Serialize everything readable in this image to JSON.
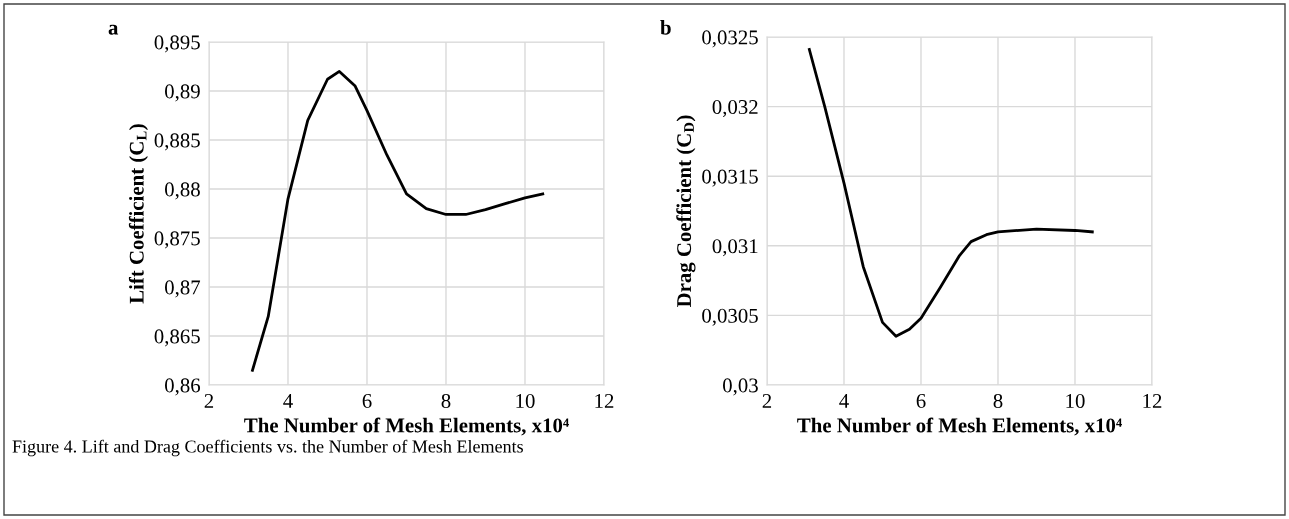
{
  "chart_data": [
    {
      "type": "line",
      "title": "a",
      "xlabel": "The Number of Mesh Elements, x10⁴",
      "ylabel": "Lift Coefficient (C$_{L}$)",
      "series": [
        {
          "color": "#000000",
          "x": [
            3.1,
            3.5,
            4,
            4.5,
            5,
            5.3,
            5.7,
            6,
            6.5,
            7,
            7.5,
            8,
            8.5,
            9,
            9.5,
            10,
            10.45
          ],
          "values": [
            0.8615,
            0.867,
            0.879,
            0.887,
            0.8912,
            0.892,
            0.8905,
            0.888,
            0.8835,
            0.8795,
            0.878,
            0.8774,
            0.8774,
            0.8779,
            0.8785,
            0.8791,
            0.8795
          ]
        }
      ],
      "xlim": [
        2,
        12
      ],
      "xticks": [
        2,
        4,
        6,
        8,
        10,
        12
      ],
      "ylim": [
        0.86,
        0.895
      ],
      "yticks": [
        {
          "value": 0.86,
          "label": "0,86"
        },
        {
          "value": 0.865,
          "label": "0,865"
        },
        {
          "value": 0.87,
          "label": "0,87"
        },
        {
          "value": 0.875,
          "label": "0,875"
        },
        {
          "value": 0.88,
          "label": "0,88"
        },
        {
          "value": 0.885,
          "label": "0,885"
        },
        {
          "value": 0.89,
          "label": "0,89"
        },
        {
          "value": 0.895,
          "label": "0,895"
        }
      ],
      "grid": true,
      "marker": "none",
      "line_style": "solid",
      "annotations": [
        "Figure 4. Lift and Drag Coefficients vs. the Number of Mesh Elements"
      ]
    },
    {
      "type": "line",
      "title": "b",
      "xlabel": "The Number of Mesh Elements, x10⁴",
      "ylabel": "Drag Coefficient (C$_{D}$)",
      "series": [
        {
          "color": "#000000",
          "x": [
            3.1,
            3.5,
            4,
            4.5,
            5,
            5.35,
            5.7,
            6,
            6.5,
            7,
            7.3,
            7.7,
            8,
            9,
            10,
            10.45
          ],
          "values": [
            0.03241,
            0.032,
            0.03145,
            0.03085,
            0.03045,
            0.03035,
            0.0304,
            0.03048,
            0.0307,
            0.03093,
            0.03103,
            0.03108,
            0.0311,
            0.03112,
            0.03111,
            0.0311
          ]
        }
      ],
      "xlim": [
        2,
        12
      ],
      "xticks": [
        2,
        4,
        6,
        8,
        10,
        12
      ],
      "ylim": [
        0.03,
        0.0325
      ],
      "yticks": [
        {
          "value": 0.03,
          "label": "0,03"
        },
        {
          "value": 0.0305,
          "label": "0,0305"
        },
        {
          "value": 0.031,
          "label": "0,031"
        },
        {
          "value": 0.0315,
          "label": "0,0315"
        },
        {
          "value": 0.032,
          "label": "0,032"
        },
        {
          "value": 0.0325,
          "label": "0,0325"
        }
      ],
      "grid": true,
      "marker": "none",
      "line_style": "solid"
    }
  ]
}
